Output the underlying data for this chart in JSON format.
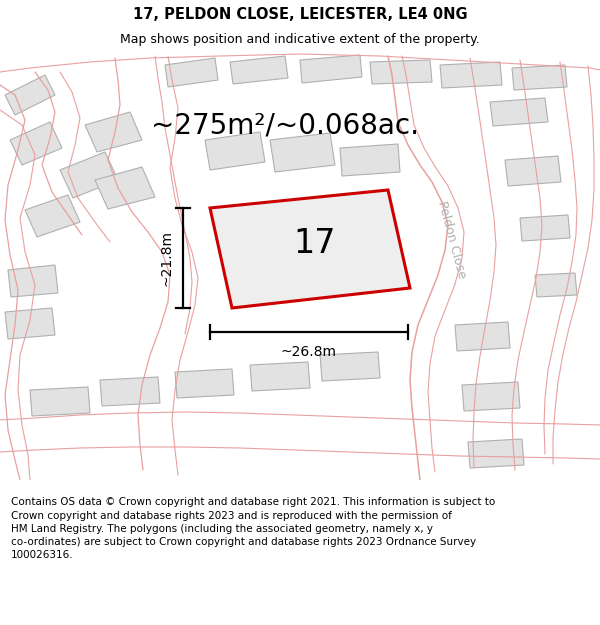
{
  "title": "17, PELDON CLOSE, LEICESTER, LE4 0NG",
  "subtitle": "Map shows position and indicative extent of the property.",
  "area_text": "~275m²/~0.068ac.",
  "label_17": "17",
  "dim_width": "~26.8m",
  "dim_height": "~21.8m",
  "road_label": "Peldon Close",
  "footer": "Contains OS data © Crown copyright and database right 2021. This information is subject to\nCrown copyright and database rights 2023 and is reproduced with the permission of\nHM Land Registry. The polygons (including the associated geometry, namely x, y\nco-ordinates) are subject to Crown copyright and database rights 2023 Ordnance Survey\n100026316.",
  "bg_color": "#f0f0f0",
  "plot_fc": "#e2e2e2",
  "plot_ec": "#b0b0b0",
  "red_color": "#cc0000",
  "pink_color": "#e8a0a0",
  "title_fontsize": 10.5,
  "subtitle_fontsize": 9,
  "area_fontsize": 20,
  "label_fontsize": 24,
  "dim_fontsize": 10,
  "footer_fontsize": 7.5,
  "road_fontsize": 9
}
